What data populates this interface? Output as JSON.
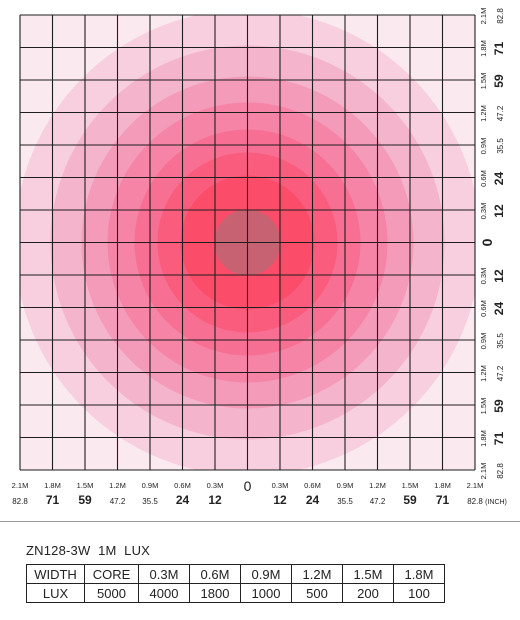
{
  "diagram": {
    "colors": {
      "grid": "#1e1e1e",
      "rings": [
        "#f7cfdf",
        "#f4b4cc",
        "#f39bb9",
        "#f584a6",
        "#f76f92",
        "#f95c7d",
        "#fb4d6a"
      ],
      "core": "#c76272"
    },
    "bottom_axis": {
      "meters": [
        "2.1M",
        "1.8M",
        "1.5M",
        "1.2M",
        "0.9M",
        "0.6M",
        "0.3M",
        "0",
        "0.3M",
        "0.6M",
        "0.9M",
        "1.2M",
        "1.5M",
        "1.8M",
        "2.1M"
      ],
      "inches": [
        "82.8",
        "71",
        "59",
        "47.2",
        "35.5",
        "24",
        "12",
        "12",
        "24",
        "35.5",
        "47.2",
        "59",
        "71",
        "82.8"
      ],
      "unit": "(INCH)"
    },
    "right_axis": {
      "meters": [
        "2.1M",
        "1.8M",
        "1.5M",
        "1.2M",
        "0.9M",
        "0.6M",
        "0.3M",
        "0",
        "0.3M",
        "0.6M",
        "0.9M",
        "1.2M",
        "1.5M",
        "1.8M",
        "2.1M"
      ],
      "inches": [
        "82.8",
        "71",
        "59",
        "47.2",
        "35.5",
        "24",
        "12",
        "12",
        "24",
        "35.5",
        "47.2",
        "59",
        "71",
        "82.8"
      ]
    }
  },
  "table": {
    "title": "ZN128-3W  1M  LUX",
    "header": [
      "WIDTH",
      "CORE",
      "0.3M",
      "0.6M",
      "0.9M",
      "1.2M",
      "1.5M",
      "1.8M"
    ],
    "row": [
      "LUX",
      "5000",
      "4000",
      "1800",
      "1000",
      "500",
      "200",
      "100"
    ]
  },
  "chart_data": {
    "type": "table",
    "title": "ZN128-3W  1M  LUX",
    "categories": [
      "CORE",
      "0.3M",
      "0.6M",
      "0.9M",
      "1.2M",
      "1.5M",
      "1.8M"
    ],
    "series": [
      {
        "name": "LUX",
        "values": [
          5000,
          4000,
          1800,
          1000,
          500,
          200,
          100
        ]
      }
    ]
  }
}
